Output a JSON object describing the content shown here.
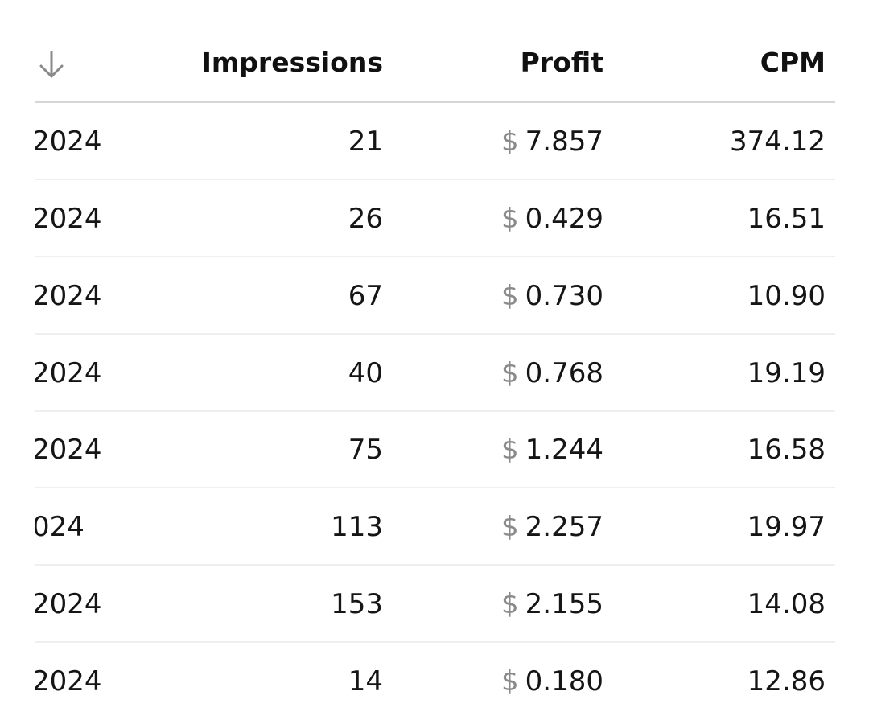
{
  "table": {
    "columns": {
      "sort_icon": "arrow-down-icon",
      "impressions": "Impressions",
      "profit": "Profit",
      "cpm": "CPM"
    },
    "currency_symbol": "$",
    "rows": [
      {
        "date": "2024",
        "impressions": "21",
        "profit": "7.857",
        "cpm": "374.12"
      },
      {
        "date": "2024",
        "impressions": "26",
        "profit": "0.429",
        "cpm": "16.51"
      },
      {
        "date": "2024",
        "impressions": "67",
        "profit": "0.730",
        "cpm": "10.90"
      },
      {
        "date": "2024",
        "impressions": "40",
        "profit": "0.768",
        "cpm": "19.19"
      },
      {
        "date": "2024",
        "impressions": "75",
        "profit": "1.244",
        "cpm": "16.58"
      },
      {
        "date": "024",
        "impressions": "113",
        "profit": "2.257",
        "cpm": "19.97"
      },
      {
        "date": "2024",
        "impressions": "153",
        "profit": "2.155",
        "cpm": "14.08"
      },
      {
        "date": "2024",
        "impressions": "14",
        "profit": "0.180",
        "cpm": "12.86"
      }
    ]
  },
  "colors": {
    "text": "#111111",
    "currency": "#8a8a8a",
    "divider": "#efefef",
    "header_divider": "#d6d6d6"
  }
}
